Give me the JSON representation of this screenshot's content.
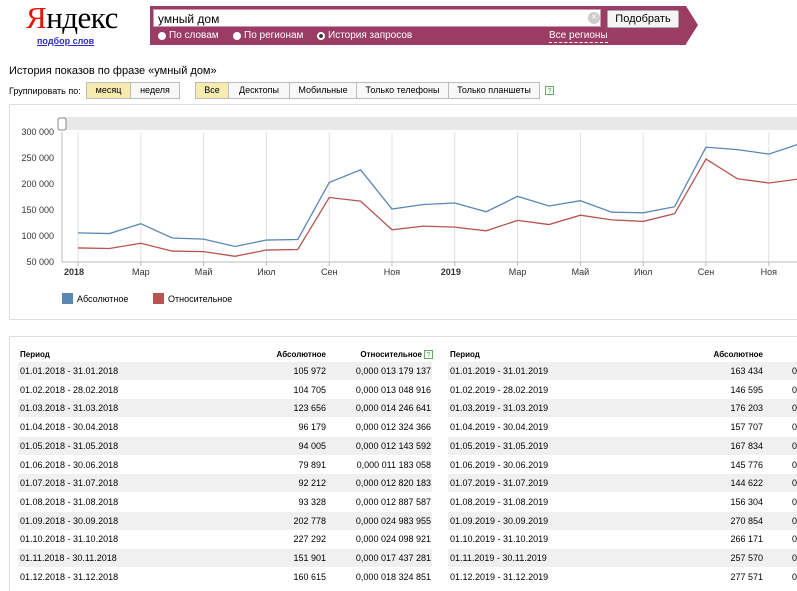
{
  "header": {
    "logo_first": "Я",
    "logo_rest": "ндекс",
    "wordstat_link": "подбор слов",
    "search_value": "умный дом",
    "clear_icon": "×",
    "search_button": "Подобрать",
    "radios": [
      {
        "label": "По словам",
        "selected": false
      },
      {
        "label": "По регионам",
        "selected": false
      },
      {
        "label": "История запросов",
        "selected": true
      }
    ],
    "regions_link": "Все регионы"
  },
  "page_title": "История показов по фразе «умный дом»",
  "grouping": {
    "label": "Группировать по:",
    "options": [
      {
        "label": "месяц",
        "active": true
      },
      {
        "label": "неделя",
        "active": false
      }
    ]
  },
  "devices": {
    "options": [
      {
        "label": "Все",
        "active": true
      },
      {
        "label": "Десктопы",
        "active": false
      },
      {
        "label": "Мобильные",
        "active": false
      },
      {
        "label": "Только телефоны",
        "active": false
      },
      {
        "label": "Только планшеты",
        "active": false
      }
    ],
    "help_icon": "?"
  },
  "chart_data": {
    "type": "line",
    "x_labels": [
      "2018",
      "Мар",
      "Май",
      "Июл",
      "Сен",
      "Ноя",
      "2019",
      "Мар",
      "Май",
      "Июл",
      "Сен",
      "Ноя"
    ],
    "bold_x_labels": [
      "2018",
      "2019"
    ],
    "y_ticks": [
      "300 000",
      "250 000",
      "200 000",
      "150 000",
      "100 000",
      "50 000"
    ],
    "ylim": [
      50000,
      300000
    ],
    "series": [
      {
        "name": "Абсолютное",
        "color": "#5b87b5",
        "values": [
          105972,
          104705,
          123656,
          96179,
          94005,
          79891,
          92212,
          93328,
          202778,
          227292,
          151901,
          160615,
          163434,
          146595,
          176203,
          157707,
          167834,
          145776,
          144622,
          156304,
          270854,
          266171,
          257570,
          277571
        ]
      },
      {
        "name": "Относительное",
        "color": "#b85450",
        "values": [
          77000,
          76000,
          86000,
          71000,
          70000,
          61000,
          73000,
          74000,
          174000,
          167000,
          112000,
          119000,
          117000,
          110000,
          130000,
          122000,
          140000,
          131000,
          128000,
          143000,
          248000,
          210000,
          202000,
          210000
        ]
      }
    ]
  },
  "table": {
    "headers": {
      "period": "Период",
      "absolute": "Абсолютное",
      "relative": "Относительное"
    },
    "left_rows": [
      {
        "period": "01.01.2018 - 31.01.2018",
        "absolute": "105 972",
        "relative": "0,000 013 179 137"
      },
      {
        "period": "01.02.2018 - 28.02.2018",
        "absolute": "104 705",
        "relative": "0,000 013 048 916"
      },
      {
        "period": "01.03.2018 - 31.03.2018",
        "absolute": "123 656",
        "relative": "0,000 014 246 641"
      },
      {
        "period": "01.04.2018 - 30.04.2018",
        "absolute": "96 179",
        "relative": "0,000 012 324 366"
      },
      {
        "period": "01.05.2018 - 31.05.2018",
        "absolute": "94 005",
        "relative": "0,000 012 143 592"
      },
      {
        "period": "01.06.2018 - 30.06.2018",
        "absolute": "79 891",
        "relative": "0,000 011 183 058"
      },
      {
        "period": "01.07.2018 - 31.07.2018",
        "absolute": "92 212",
        "relative": "0,000 012 820 183"
      },
      {
        "period": "01.08.2018 - 31.08.2018",
        "absolute": "93 328",
        "relative": "0,000 012 887 587"
      },
      {
        "period": "01.09.2018 - 30.09.2018",
        "absolute": "202 778",
        "relative": "0,000 024 983 955"
      },
      {
        "period": "01.10.2018 - 31.10.2018",
        "absolute": "227 292",
        "relative": "0,000 024 098 921"
      },
      {
        "period": "01.11.2018 - 30.11.2018",
        "absolute": "151 901",
        "relative": "0,000 017 437 281"
      },
      {
        "period": "01.12.2018 - 31.12.2018",
        "absolute": "160 615",
        "relative": "0,000 018 324 851"
      }
    ],
    "right_rows": [
      {
        "period": "01.01.2019 - 31.01.2019",
        "absolute": "163 434",
        "relative": "0"
      },
      {
        "period": "01.02.2019 - 28.02.2019",
        "absolute": "146 595",
        "relative": "0"
      },
      {
        "period": "01.03.2019 - 31.03.2019",
        "absolute": "176 203",
        "relative": "0"
      },
      {
        "period": "01.04.2019 - 30.04.2019",
        "absolute": "157 707",
        "relative": "0"
      },
      {
        "period": "01.05.2019 - 31.05.2019",
        "absolute": "167 834",
        "relative": "0"
      },
      {
        "period": "01.06.2019 - 30.06.2019",
        "absolute": "145 776",
        "relative": "0"
      },
      {
        "period": "01.07.2019 - 31.07.2019",
        "absolute": "144 622",
        "relative": "0"
      },
      {
        "period": "01.08.2019 - 31.08.2019",
        "absolute": "156 304",
        "relative": "0"
      },
      {
        "period": "01.09.2019 - 30.09.2019",
        "absolute": "270 854",
        "relative": "0"
      },
      {
        "period": "01.10.2019 - 31.10.2019",
        "absolute": "266 171",
        "relative": "0"
      },
      {
        "period": "01.11.2019 - 30.11.2019",
        "absolute": "257 570",
        "relative": "0"
      },
      {
        "period": "01.12.2019 - 31.12.2019",
        "absolute": "277 571",
        "relative": "0"
      }
    ]
  }
}
